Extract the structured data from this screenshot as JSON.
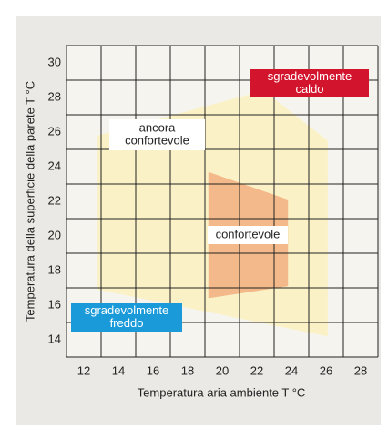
{
  "chart_data": {
    "type": "region",
    "x_label": "Temperatura aria ambiente T °C",
    "y_label": "Temperatura della superficie della parete T °C",
    "xlim": [
      11,
      29
    ],
    "ylim": [
      13,
      31
    ],
    "xticks": [
      12,
      14,
      16,
      18,
      20,
      22,
      24,
      26,
      28
    ],
    "yticks": [
      14,
      16,
      18,
      20,
      22,
      24,
      26,
      28,
      30
    ],
    "grid": true,
    "regions": [
      {
        "color": "#fbf1b8",
        "x": [
          12.8,
          22.4,
          26.1,
          26.1,
          12.8
        ],
        "y": [
          25.8,
          28.4,
          25.5,
          14.2,
          16.9
        ]
      },
      {
        "color": "#f0a676",
        "x": [
          19.2,
          23.8,
          23.8,
          19.2
        ],
        "y": [
          23.7,
          22.1,
          17.1,
          16.4
        ]
      }
    ],
    "annotations": [
      {
        "lines": [
          "sgradevolmente",
          "caldo"
        ],
        "color": "#d2142c",
        "text_color": "#ffffff"
      },
      {
        "lines": [
          "ancora",
          "confortevole"
        ],
        "color": "#ffffff",
        "text_color": "#222222"
      },
      {
        "lines": [
          "confortevole"
        ],
        "color": "#ffffff",
        "text_color": "#222222"
      },
      {
        "lines": [
          "sgradevolmente",
          "freddo"
        ],
        "color": "#1a9ad8",
        "text_color": "#ffffff"
      }
    ]
  }
}
